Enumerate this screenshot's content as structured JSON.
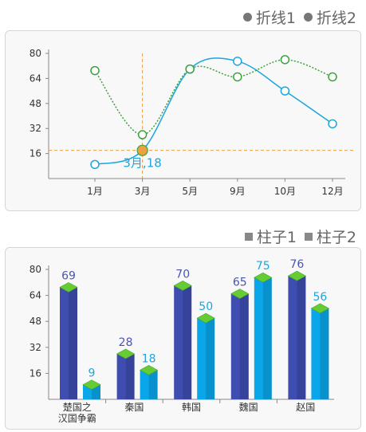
{
  "legend_top": {
    "items": [
      "折线1",
      "折线2"
    ],
    "color": "#777777"
  },
  "legend_bottom": {
    "items": [
      "柱子1",
      "柱子2"
    ],
    "color": "#888888"
  },
  "chart_data": [
    {
      "type": "line",
      "x": [
        "1月",
        "3月",
        "5月",
        "9月",
        "10月",
        "12月"
      ],
      "ylim": [
        0,
        80
      ],
      "yticks": [
        16,
        32,
        48,
        64,
        80
      ],
      "series": [
        {
          "name": "折线1",
          "values": [
            9,
            18,
            70,
            75,
            56,
            35
          ],
          "color": "#1aa6df",
          "style": "solid-smooth"
        },
        {
          "name": "折线2",
          "values": [
            69,
            28,
            70,
            65,
            76,
            65
          ],
          "color": "#3aa33a",
          "style": "dotted-smooth"
        }
      ],
      "highlight": {
        "category": "3月",
        "value": 18,
        "label": "3月,18",
        "marker_color": "#f0a040",
        "crosshair_color": "#e8a040"
      }
    },
    {
      "type": "bar",
      "categories": [
        "楚国之汉国争霸",
        "秦国",
        "韩国",
        "魏国",
        "赵国"
      ],
      "category_lines": [
        [
          "楚国之",
          "汉国争霸"
        ],
        [
          "秦国"
        ],
        [
          "韩国"
        ],
        [
          "魏国"
        ],
        [
          "赵国"
        ]
      ],
      "ylim": [
        0,
        80
      ],
      "yticks": [
        16,
        32,
        48,
        64,
        80
      ],
      "series": [
        {
          "name": "柱子1",
          "values": [
            69,
            28,
            70,
            65,
            76
          ],
          "color": "#3f4db0",
          "label_color": "#4a55b0"
        },
        {
          "name": "柱子2",
          "values": [
            9,
            18,
            50,
            75,
            56
          ],
          "color": "#0aa6ea",
          "label_color": "#1aa6df"
        }
      ],
      "cap_color": "#66cc33"
    }
  ]
}
